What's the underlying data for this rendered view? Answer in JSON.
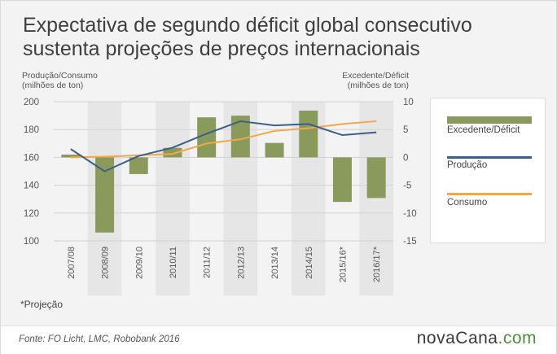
{
  "title": "Expectativa de segundo déficit global consecutivo sustenta projeções de preços internacionais",
  "left_axis_caption": [
    "Produção/Consumo",
    "(milhões de ton)"
  ],
  "right_axis_caption": [
    "Excedente/Déficit",
    "(milhões de ton)"
  ],
  "note": "*Projeção",
  "source": "Fonte: FO Licht, LMC, Robobank 2016",
  "logo": {
    "prefix": "novaCana",
    "suffix": ".com"
  },
  "colors": {
    "bar": "#8a9a5b",
    "producao": "#3c5f8a",
    "consumo": "#f0a848",
    "band": "#e6e6e6",
    "grid": "#d2d2d2"
  },
  "chart_data": {
    "type": "bar",
    "categories": [
      "2007/08",
      "2008/09",
      "2009/10",
      "2010/11",
      "2011/12",
      "2012/13",
      "2013/14",
      "2014/15",
      "2015/16*",
      "2016/17*"
    ],
    "series": [
      {
        "name": "Excedente/Déficit",
        "type": "bar",
        "axis": "right",
        "values": [
          0.5,
          -13.5,
          -3,
          1.7,
          7.2,
          7.5,
          2.6,
          8.4,
          -8,
          -7.3
        ]
      },
      {
        "name": "Produção",
        "type": "line",
        "axis": "left",
        "values": [
          166,
          150,
          161,
          167,
          177,
          186,
          183,
          184,
          176,
          178
        ]
      },
      {
        "name": "Consumo",
        "type": "line",
        "axis": "left",
        "values": [
          160,
          160.5,
          161.5,
          162.5,
          170,
          173,
          179,
          181,
          184,
          186
        ]
      }
    ],
    "y_left": {
      "lim": [
        100,
        200
      ],
      "ticks": [
        100,
        120,
        140,
        160,
        180,
        200
      ]
    },
    "y_right": {
      "lim": [
        -15,
        10
      ],
      "ticks": [
        -15,
        -10,
        -5,
        0,
        5,
        10
      ]
    },
    "legend": [
      "Excedente/Déficit",
      "Produção",
      "Consumo"
    ],
    "legend_position": "right",
    "grid": true
  }
}
